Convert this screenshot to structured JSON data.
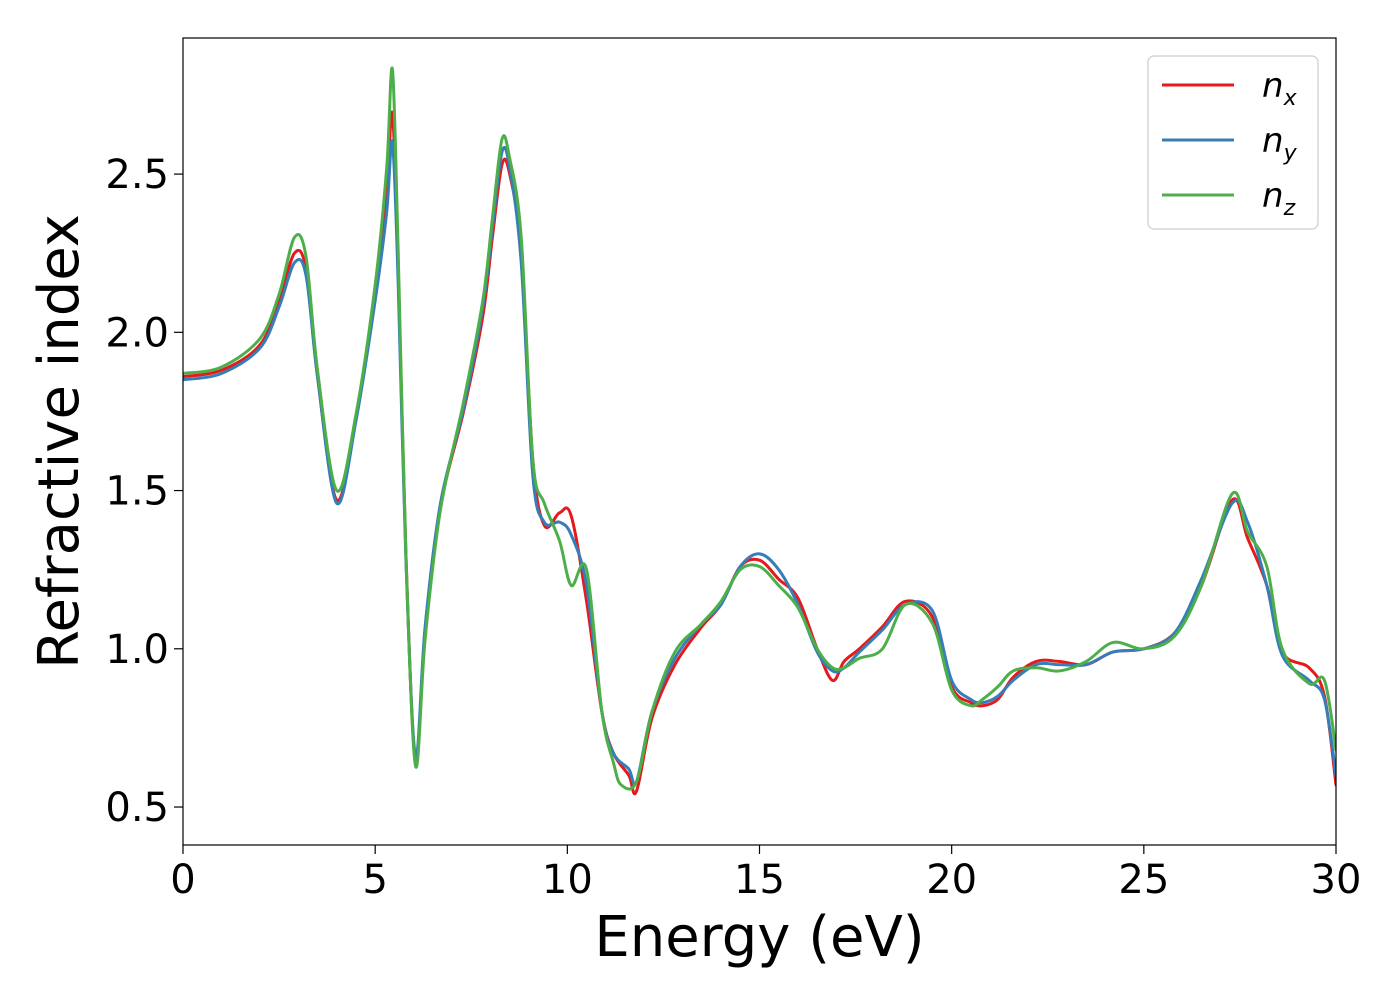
{
  "chart_data": {
    "type": "line",
    "title": "",
    "xlabel": "Energy (eV)",
    "ylabel": "Refractive index",
    "xlim": [
      0,
      30
    ],
    "ylim": [
      0.38,
      2.93
    ],
    "xticks": [
      0,
      5,
      10,
      15,
      20,
      25,
      30
    ],
    "xtick_labels": [
      "0",
      "5",
      "10",
      "15",
      "20",
      "25",
      "30"
    ],
    "yticks": [
      0.5,
      1.0,
      1.5,
      2.0,
      2.5
    ],
    "ytick_labels": [
      "0.5",
      "1.0",
      "1.5",
      "2.0",
      "2.5"
    ],
    "grid": false,
    "legend_position": "top-right",
    "series": [
      {
        "name": "x",
        "label_base": "n",
        "label_sub": "x",
        "color": "#e41a1c",
        "points": [
          [
            0,
            1.86
          ],
          [
            1,
            1.88
          ],
          [
            2,
            1.96
          ],
          [
            2.5,
            2.1
          ],
          [
            2.9,
            2.25
          ],
          [
            3.2,
            2.2
          ],
          [
            3.5,
            1.86
          ],
          [
            4,
            1.47
          ],
          [
            4.5,
            1.73
          ],
          [
            5,
            2.12
          ],
          [
            5.3,
            2.45
          ],
          [
            5.45,
            2.69
          ],
          [
            5.6,
            2.2
          ],
          [
            5.8,
            1.3
          ],
          [
            6.05,
            0.64
          ],
          [
            6.3,
            1.05
          ],
          [
            6.7,
            1.45
          ],
          [
            7.3,
            1.75
          ],
          [
            7.8,
            2.05
          ],
          [
            8.05,
            2.3
          ],
          [
            8.3,
            2.53
          ],
          [
            8.5,
            2.5
          ],
          [
            8.8,
            2.25
          ],
          [
            9.1,
            1.6
          ],
          [
            9.4,
            1.39
          ],
          [
            9.8,
            1.43
          ],
          [
            10.1,
            1.42
          ],
          [
            10.5,
            1.15
          ],
          [
            10.9,
            0.8
          ],
          [
            11.2,
            0.67
          ],
          [
            11.6,
            0.6
          ],
          [
            11.8,
            0.55
          ],
          [
            12.2,
            0.78
          ],
          [
            12.8,
            0.95
          ],
          [
            13.5,
            1.07
          ],
          [
            14,
            1.14
          ],
          [
            14.5,
            1.26
          ],
          [
            15,
            1.28
          ],
          [
            15.5,
            1.22
          ],
          [
            16,
            1.16
          ],
          [
            16.5,
            1.0
          ],
          [
            16.9,
            0.9
          ],
          [
            17.2,
            0.96
          ],
          [
            17.6,
            1.0
          ],
          [
            18.2,
            1.07
          ],
          [
            18.8,
            1.15
          ],
          [
            19.5,
            1.1
          ],
          [
            20,
            0.88
          ],
          [
            20.5,
            0.83
          ],
          [
            20.8,
            0.82
          ],
          [
            21.2,
            0.84
          ],
          [
            21.6,
            0.91
          ],
          [
            22.2,
            0.96
          ],
          [
            22.8,
            0.96
          ],
          [
            23.5,
            0.95
          ],
          [
            24.2,
            0.99
          ],
          [
            25,
            1.0
          ],
          [
            25.8,
            1.05
          ],
          [
            26.5,
            1.2
          ],
          [
            27.3,
            1.47
          ],
          [
            27.7,
            1.35
          ],
          [
            28.2,
            1.2
          ],
          [
            28.6,
            0.99
          ],
          [
            29.3,
            0.94
          ],
          [
            29.7,
            0.85
          ],
          [
            30,
            0.57
          ]
        ]
      },
      {
        "name": "y",
        "label_base": "n",
        "label_sub": "y",
        "color": "#377eb8",
        "points": [
          [
            0,
            1.85
          ],
          [
            1,
            1.87
          ],
          [
            2,
            1.95
          ],
          [
            2.5,
            2.08
          ],
          [
            2.9,
            2.22
          ],
          [
            3.2,
            2.18
          ],
          [
            3.5,
            1.86
          ],
          [
            4,
            1.46
          ],
          [
            4.5,
            1.72
          ],
          [
            5,
            2.1
          ],
          [
            5.3,
            2.38
          ],
          [
            5.45,
            2.6
          ],
          [
            5.6,
            2.15
          ],
          [
            5.8,
            1.28
          ],
          [
            6.05,
            0.66
          ],
          [
            6.3,
            1.07
          ],
          [
            6.7,
            1.46
          ],
          [
            7.3,
            1.76
          ],
          [
            7.8,
            2.08
          ],
          [
            8.05,
            2.33
          ],
          [
            8.3,
            2.57
          ],
          [
            8.5,
            2.52
          ],
          [
            8.8,
            2.22
          ],
          [
            9.1,
            1.55
          ],
          [
            9.4,
            1.4
          ],
          [
            9.8,
            1.4
          ],
          [
            10.1,
            1.36
          ],
          [
            10.5,
            1.2
          ],
          [
            10.9,
            0.8
          ],
          [
            11.2,
            0.67
          ],
          [
            11.6,
            0.62
          ],
          [
            11.8,
            0.58
          ],
          [
            12.2,
            0.8
          ],
          [
            12.8,
            0.97
          ],
          [
            13.5,
            1.08
          ],
          [
            14,
            1.14
          ],
          [
            14.5,
            1.26
          ],
          [
            15,
            1.3
          ],
          [
            15.5,
            1.25
          ],
          [
            16,
            1.14
          ],
          [
            16.5,
            0.99
          ],
          [
            16.9,
            0.93
          ],
          [
            17.2,
            0.94
          ],
          [
            17.6,
            0.99
          ],
          [
            18.2,
            1.06
          ],
          [
            18.8,
            1.14
          ],
          [
            19.5,
            1.12
          ],
          [
            20,
            0.9
          ],
          [
            20.5,
            0.84
          ],
          [
            20.8,
            0.83
          ],
          [
            21.2,
            0.85
          ],
          [
            21.6,
            0.9
          ],
          [
            22.2,
            0.95
          ],
          [
            22.8,
            0.95
          ],
          [
            23.5,
            0.95
          ],
          [
            24.2,
            0.99
          ],
          [
            25,
            1.0
          ],
          [
            25.8,
            1.05
          ],
          [
            26.5,
            1.22
          ],
          [
            27.3,
            1.46
          ],
          [
            27.7,
            1.4
          ],
          [
            28.2,
            1.2
          ],
          [
            28.6,
            0.98
          ],
          [
            29.3,
            0.9
          ],
          [
            29.7,
            0.84
          ],
          [
            30,
            0.6
          ]
        ]
      },
      {
        "name": "z",
        "label_base": "n",
        "label_sub": "z",
        "color": "#4daf4a",
        "points": [
          [
            0,
            1.87
          ],
          [
            1,
            1.89
          ],
          [
            2,
            1.98
          ],
          [
            2.5,
            2.12
          ],
          [
            2.9,
            2.3
          ],
          [
            3.2,
            2.24
          ],
          [
            3.5,
            1.88
          ],
          [
            4,
            1.5
          ],
          [
            4.5,
            1.74
          ],
          [
            5,
            2.15
          ],
          [
            5.3,
            2.52
          ],
          [
            5.45,
            2.83
          ],
          [
            5.6,
            2.25
          ],
          [
            5.8,
            1.3
          ],
          [
            6.05,
            0.63
          ],
          [
            6.3,
            1.03
          ],
          [
            6.7,
            1.44
          ],
          [
            7.3,
            1.78
          ],
          [
            7.8,
            2.1
          ],
          [
            8.05,
            2.36
          ],
          [
            8.3,
            2.61
          ],
          [
            8.5,
            2.55
          ],
          [
            8.8,
            2.3
          ],
          [
            9.1,
            1.6
          ],
          [
            9.4,
            1.46
          ],
          [
            9.8,
            1.34
          ],
          [
            10.1,
            1.2
          ],
          [
            10.5,
            1.25
          ],
          [
            10.9,
            0.8
          ],
          [
            11.2,
            0.64
          ],
          [
            11.4,
            0.57
          ],
          [
            11.8,
            0.58
          ],
          [
            12.2,
            0.8
          ],
          [
            12.8,
            0.99
          ],
          [
            13.5,
            1.08
          ],
          [
            14,
            1.15
          ],
          [
            14.5,
            1.25
          ],
          [
            15,
            1.26
          ],
          [
            15.5,
            1.2
          ],
          [
            16,
            1.13
          ],
          [
            16.5,
            1.0
          ],
          [
            16.9,
            0.94
          ],
          [
            17.2,
            0.94
          ],
          [
            17.6,
            0.97
          ],
          [
            18.2,
            1.0
          ],
          [
            18.8,
            1.14
          ],
          [
            19.5,
            1.08
          ],
          [
            20,
            0.87
          ],
          [
            20.5,
            0.82
          ],
          [
            20.8,
            0.84
          ],
          [
            21.2,
            0.88
          ],
          [
            21.6,
            0.93
          ],
          [
            22.2,
            0.94
          ],
          [
            22.8,
            0.93
          ],
          [
            23.5,
            0.96
          ],
          [
            24.2,
            1.02
          ],
          [
            25,
            1.0
          ],
          [
            25.8,
            1.04
          ],
          [
            26.5,
            1.2
          ],
          [
            27.3,
            1.49
          ],
          [
            27.7,
            1.37
          ],
          [
            28.2,
            1.26
          ],
          [
            28.6,
            1.0
          ],
          [
            29.3,
            0.89
          ],
          [
            29.7,
            0.9
          ],
          [
            30,
            0.68
          ]
        ]
      }
    ]
  }
}
